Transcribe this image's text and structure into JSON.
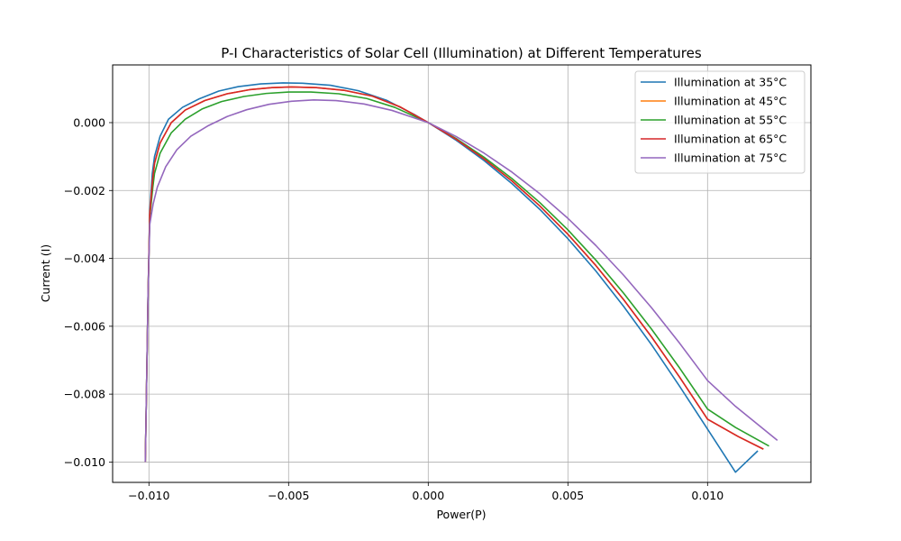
{
  "chart_data": {
    "type": "line",
    "title": "P-I Characteristics of Solar Cell (Illumination) at Different Temperatures",
    "xlabel": "Power(P)",
    "ylabel": "Current (I)",
    "xlim": [
      -0.0113,
      0.0137
    ],
    "ylim": [
      -0.0106,
      0.0017
    ],
    "xticks": [
      -0.01,
      -0.005,
      0.0,
      0.005,
      0.01
    ],
    "xtick_labels": [
      "−0.010",
      "−0.005",
      "0.000",
      "0.005",
      "0.010"
    ],
    "yticks": [
      0.0,
      -0.002,
      -0.004,
      -0.006,
      -0.008,
      -0.01
    ],
    "ytick_labels": [
      "0.000",
      "−0.002",
      "−0.004",
      "−0.006",
      "−0.008",
      "−0.010"
    ],
    "grid": true,
    "legend_position": "top-right",
    "series": [
      {
        "name": "Illumination at 35°C",
        "color": "#1f77b4",
        "points": [
          [
            -0.01013,
            -0.01
          ],
          [
            -0.01003,
            -0.005
          ],
          [
            -0.00997,
            -0.0026
          ],
          [
            -0.00988,
            -0.0015
          ],
          [
            -0.0098,
            -0.001
          ],
          [
            -0.0096,
            -0.0004
          ],
          [
            -0.0093,
            0.0001
          ],
          [
            -0.0088,
            0.00045
          ],
          [
            -0.0082,
            0.0007
          ],
          [
            -0.0075,
            0.00093
          ],
          [
            -0.0068,
            0.00106
          ],
          [
            -0.006,
            0.00114
          ],
          [
            -0.0052,
            0.00117
          ],
          [
            -0.0045,
            0.00116
          ],
          [
            -0.0035,
            0.0011
          ],
          [
            -0.0025,
            0.00094
          ],
          [
            -0.0015,
            0.00066
          ],
          [
            -0.0005,
            0.00024
          ],
          [
            0.0,
            0.0
          ],
          [
            0.001,
            -0.00052
          ],
          [
            0.002,
            -0.00112
          ],
          [
            0.003,
            -0.0018
          ],
          [
            0.004,
            -0.00256
          ],
          [
            0.005,
            -0.00342
          ],
          [
            0.006,
            -0.00437
          ],
          [
            0.007,
            -0.00542
          ],
          [
            0.008,
            -0.00655
          ],
          [
            0.009,
            -0.00777
          ],
          [
            0.01,
            -0.00903
          ],
          [
            0.011,
            -0.0103
          ],
          [
            0.0118,
            -0.00967
          ]
        ]
      },
      {
        "name": "Illumination at 45°C",
        "color": "#ff7f0e",
        "points": [
          [
            -0.01013,
            -0.01
          ],
          [
            -0.01003,
            -0.005
          ],
          [
            -0.00997,
            -0.0027
          ],
          [
            -0.00987,
            -0.0017
          ],
          [
            -0.0098,
            -0.0012
          ],
          [
            -0.0096,
            -0.0006
          ],
          [
            -0.0092,
            0.0
          ],
          [
            -0.0087,
            0.00037
          ],
          [
            -0.008,
            0.00065
          ],
          [
            -0.0072,
            0.00085
          ],
          [
            -0.0064,
            0.00097
          ],
          [
            -0.0056,
            0.00103
          ],
          [
            -0.0049,
            0.00105
          ],
          [
            -0.004,
            0.00103
          ],
          [
            -0.003,
            0.00095
          ],
          [
            -0.002,
            0.00078
          ],
          [
            -0.001,
            0.00046
          ],
          [
            0.0,
            0.0
          ],
          [
            0.001,
            -0.00049
          ],
          [
            0.002,
            -0.00107
          ],
          [
            0.003,
            -0.00172
          ],
          [
            0.004,
            -0.00246
          ],
          [
            0.005,
            -0.00329
          ],
          [
            0.006,
            -0.00421
          ],
          [
            0.007,
            -0.00522
          ],
          [
            0.008,
            -0.00632
          ],
          [
            0.009,
            -0.0075
          ],
          [
            0.01,
            -0.00874
          ],
          [
            0.0111,
            -0.00925
          ],
          [
            0.012,
            -0.00962
          ]
        ]
      },
      {
        "name": "Illumination at 55°C",
        "color": "#2ca02c",
        "points": [
          [
            -0.01013,
            -0.01
          ],
          [
            -0.01003,
            -0.005
          ],
          [
            -0.00997,
            -0.0028
          ],
          [
            -0.00986,
            -0.0019
          ],
          [
            -0.0098,
            -0.0015
          ],
          [
            -0.0096,
            -0.0009
          ],
          [
            -0.0092,
            -0.0003
          ],
          [
            -0.0087,
            0.0001
          ],
          [
            -0.0081,
            0.0004
          ],
          [
            -0.0074,
            0.00062
          ],
          [
            -0.0066,
            0.00077
          ],
          [
            -0.0058,
            0.00086
          ],
          [
            -0.005,
            0.0009
          ],
          [
            -0.0042,
            0.0009
          ],
          [
            -0.0032,
            0.00085
          ],
          [
            -0.0022,
            0.00071
          ],
          [
            -0.0012,
            0.00045
          ],
          [
            0.0,
            0.0
          ],
          [
            0.001,
            -0.00047
          ],
          [
            0.002,
            -0.00102
          ],
          [
            0.003,
            -0.00165
          ],
          [
            0.004,
            -0.00236
          ],
          [
            0.005,
            -0.00316
          ],
          [
            0.006,
            -0.00405
          ],
          [
            0.007,
            -0.00503
          ],
          [
            0.008,
            -0.00609
          ],
          [
            0.009,
            -0.00723
          ],
          [
            0.01,
            -0.00844
          ],
          [
            0.011,
            -0.00898
          ],
          [
            0.0122,
            -0.00953
          ]
        ]
      },
      {
        "name": "Illumination at 65°C",
        "color": "#d62728",
        "points": [
          [
            -0.01013,
            -0.01
          ],
          [
            -0.01003,
            -0.005
          ],
          [
            -0.00997,
            -0.0027
          ],
          [
            -0.00987,
            -0.0017
          ],
          [
            -0.0098,
            -0.0012
          ],
          [
            -0.0096,
            -0.0006
          ],
          [
            -0.0092,
            0.0
          ],
          [
            -0.0087,
            0.00037
          ],
          [
            -0.008,
            0.00065
          ],
          [
            -0.0072,
            0.00085
          ],
          [
            -0.0064,
            0.00097
          ],
          [
            -0.0056,
            0.00103
          ],
          [
            -0.0049,
            0.00105
          ],
          [
            -0.004,
            0.00103
          ],
          [
            -0.003,
            0.00095
          ],
          [
            -0.002,
            0.00078
          ],
          [
            -0.001,
            0.00046
          ],
          [
            0.0,
            0.0
          ],
          [
            0.001,
            -0.00049
          ],
          [
            0.002,
            -0.00107
          ],
          [
            0.003,
            -0.00172
          ],
          [
            0.004,
            -0.00246
          ],
          [
            0.005,
            -0.00329
          ],
          [
            0.006,
            -0.00421
          ],
          [
            0.007,
            -0.00522
          ],
          [
            0.008,
            -0.00632
          ],
          [
            0.009,
            -0.0075
          ],
          [
            0.01,
            -0.00874
          ],
          [
            0.0111,
            -0.00925
          ],
          [
            0.012,
            -0.00962
          ]
        ]
      },
      {
        "name": "Illumination at 75°C",
        "color": "#9467bd",
        "points": [
          [
            -0.01013,
            -0.01
          ],
          [
            -0.01003,
            -0.005
          ],
          [
            -0.00997,
            -0.003
          ],
          [
            -0.00985,
            -0.0024
          ],
          [
            -0.0097,
            -0.0019
          ],
          [
            -0.0094,
            -0.0013
          ],
          [
            -0.009,
            -0.0008
          ],
          [
            -0.0085,
            -0.0004
          ],
          [
            -0.0079,
            -0.0001
          ],
          [
            -0.0072,
            0.00018
          ],
          [
            -0.0065,
            0.00038
          ],
          [
            -0.0057,
            0.00054
          ],
          [
            -0.0049,
            0.00063
          ],
          [
            -0.0041,
            0.00067
          ],
          [
            -0.0033,
            0.00065
          ],
          [
            -0.0023,
            0.00055
          ],
          [
            -0.0013,
            0.00036
          ],
          [
            0.0,
            0.0
          ],
          [
            0.001,
            -0.00041
          ],
          [
            0.002,
            -0.0009
          ],
          [
            0.003,
            -0.00146
          ],
          [
            0.004,
            -0.0021
          ],
          [
            0.005,
            -0.00282
          ],
          [
            0.006,
            -0.00362
          ],
          [
            0.007,
            -0.0045
          ],
          [
            0.008,
            -0.00546
          ],
          [
            0.009,
            -0.0065
          ],
          [
            0.01,
            -0.0076
          ],
          [
            0.011,
            -0.00836
          ],
          [
            0.0125,
            -0.00936
          ]
        ]
      }
    ]
  }
}
